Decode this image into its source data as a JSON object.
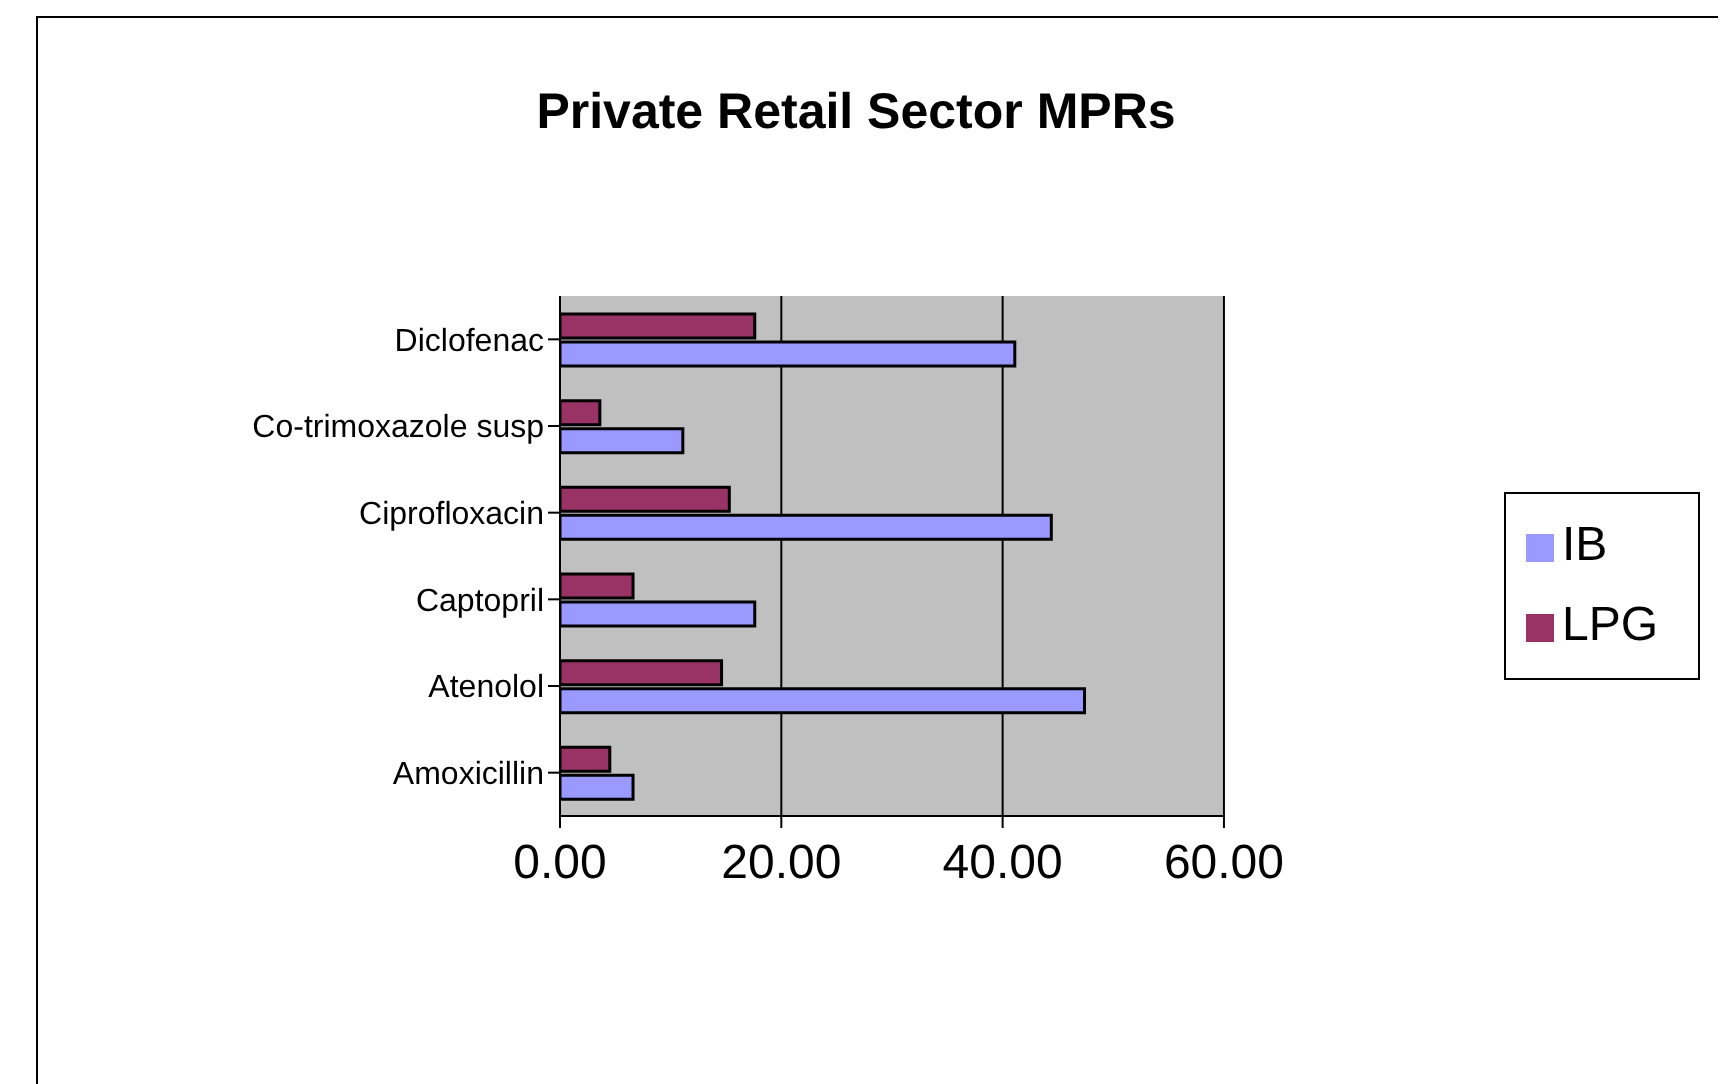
{
  "chart_data": {
    "type": "bar",
    "orientation": "horizontal",
    "title": "Private Retail Sector MPRs",
    "categories": [
      "Diclofenac",
      "Co-trimoxazole susp",
      "Ciprofloxacin",
      "Captopril",
      "Atenolol",
      "Amoxicillin"
    ],
    "series": [
      {
        "name": "LPG",
        "color": "#993366",
        "values": [
          17.6,
          3.6,
          15.3,
          6.6,
          14.6,
          4.5
        ]
      },
      {
        "name": "IB",
        "color": "#9999ff",
        "values": [
          41.1,
          11.1,
          44.4,
          17.6,
          47.4,
          6.6
        ]
      }
    ],
    "xlim": [
      0,
      60
    ],
    "xticks": [
      {
        "value": 0,
        "label": "0.00"
      },
      {
        "value": 20,
        "label": "20.00"
      },
      {
        "value": 40,
        "label": "40.00"
      },
      {
        "value": 60,
        "label": "60.00"
      }
    ],
    "grid": "x",
    "legend": "right"
  }
}
